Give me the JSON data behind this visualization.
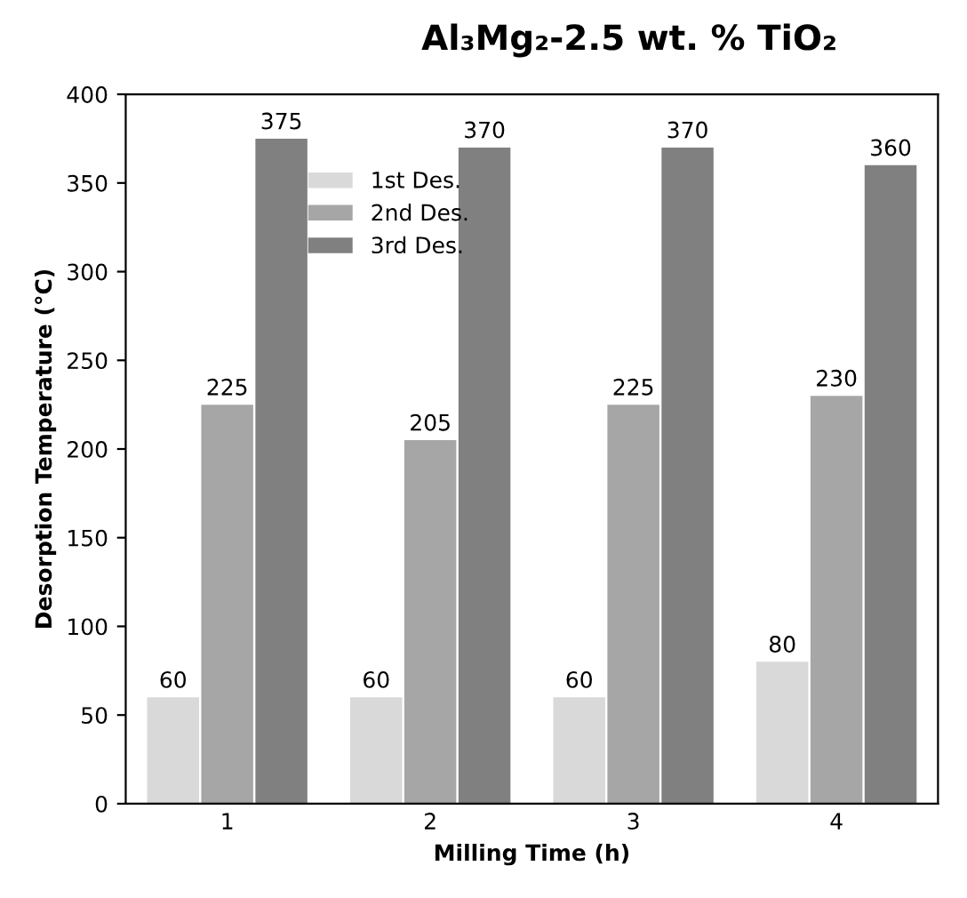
{
  "chart_data": {
    "type": "bar",
    "title": "Al₃Mg₂-2.5 wt. % TiO₂",
    "xlabel": "Milling Time (h)",
    "ylabel": "Desorption Temperature (°C)",
    "categories": [
      "1",
      "2",
      "3",
      "4"
    ],
    "series": [
      {
        "name": "1st Des.",
        "color": "#d9d9d9",
        "values": [
          60,
          60,
          60,
          80
        ]
      },
      {
        "name": "2nd Des.",
        "color": "#a6a6a6",
        "values": [
          225,
          205,
          225,
          230
        ]
      },
      {
        "name": "3rd Des.",
        "color": "#808080",
        "values": [
          375,
          370,
          370,
          360
        ]
      }
    ],
    "ylim": [
      0,
      400
    ],
    "yticks": [
      0,
      50,
      100,
      150,
      200,
      250,
      300,
      350,
      400
    ],
    "data_labels": true,
    "legend": "top left",
    "grid": false
  }
}
